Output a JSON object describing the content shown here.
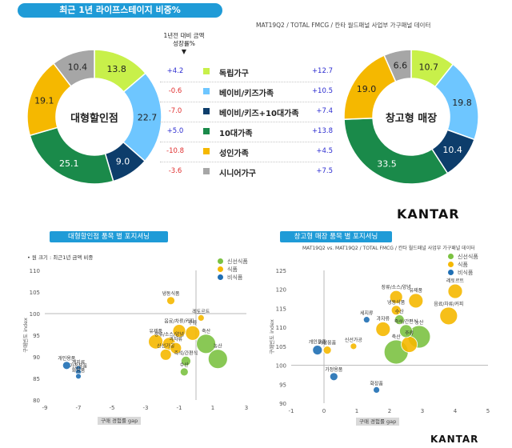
{
  "header": {
    "title": "최근 1년 라이프스테이지 비중%",
    "source": "MAT19Q2 / TOTAL FMCG / 칸타 월드패널 사업부 가구패널 데이터",
    "growth_header_line1": "1년전 대비 금액",
    "growth_header_line2": "성장률%",
    "growth_arrow": "▼"
  },
  "colors": {
    "single": "#c8f04a",
    "baby": "#6ec6ff",
    "baby10": "#0d3d6b",
    "teen": "#1a8a4a",
    "adult": "#f5b800",
    "senior": "#a6a6a6",
    "fresh": "#7cc242",
    "food": "#f5b800",
    "nonfood": "#1f6fb4"
  },
  "brand": {
    "logo": "KANTAR"
  },
  "chart_data": [
    {
      "type": "pie",
      "variant": "donut",
      "center_label": "대형할인점",
      "labels": [
        "독립가구",
        "베이비/키즈가족",
        "베이비/키즈+10대가족",
        "10대가족",
        "성인가족",
        "시니어가구"
      ],
      "values": [
        13.8,
        22.7,
        9.0,
        25.1,
        19.1,
        10.4
      ],
      "growth": [
        "+4.2",
        "-0.6",
        "-7.0",
        "+5.0",
        "-10.8",
        "-3.6"
      ],
      "value_labels": [
        "13.8",
        "22.7",
        "9.0",
        "25.1",
        "19.1",
        "10.4"
      ]
    },
    {
      "type": "pie",
      "variant": "donut",
      "center_label": "창고형 매장",
      "labels": [
        "독립가구",
        "베이비/키즈가족",
        "베이비/키즈+10대가족",
        "10대가족",
        "성인가족",
        "시니어가구"
      ],
      "values": [
        10.7,
        19.8,
        10.4,
        33.5,
        19.0,
        6.6
      ],
      "growth": [
        "+12.7",
        "+10.5",
        "+7.4",
        "+13.8",
        "+4.5",
        "+7.5"
      ],
      "value_labels": [
        "10.7",
        "19.8",
        "10.4",
        "33.5",
        "19.0",
        "6.6"
      ]
    },
    {
      "type": "scatter",
      "title": "대형할인점 품목 별 포지셔닝",
      "bubble_note": "• 원 크기 : 최근1년 금액 비중",
      "xlabel": "구매 경험률 gap",
      "ylabel": "구매빈도 index",
      "xlim": [
        -9,
        3
      ],
      "ylim": [
        80,
        110
      ],
      "xticks": [
        "-9",
        "-7",
        "-5",
        "-3",
        "-1",
        "1",
        "3"
      ],
      "yticks": [
        "80",
        "85",
        "90",
        "95",
        "100",
        "105",
        "110"
      ],
      "legend_position": "top-right",
      "legend": [
        "신선식품",
        "식품",
        "비식품"
      ],
      "points": [
        {
          "label": "냉동식품",
          "x": -1.5,
          "y": 103,
          "r": 5,
          "group": "food"
        },
        {
          "label": "레토르트",
          "x": 0.3,
          "y": 99,
          "r": 4,
          "group": "food"
        },
        {
          "label": "음료/차류/커피",
          "x": -1.0,
          "y": 96,
          "r": 8,
          "group": "food"
        },
        {
          "label": "주류",
          "x": -0.2,
          "y": 95.5,
          "r": 9,
          "group": "food"
        },
        {
          "label": "유제품",
          "x": -2.4,
          "y": 93.5,
          "r": 9,
          "group": "food"
        },
        {
          "label": "장류/소스/양념",
          "x": -1.6,
          "y": 93,
          "r": 8,
          "group": "food"
        },
        {
          "label": "과자류",
          "x": -1.2,
          "y": 92,
          "r": 7,
          "group": "food"
        },
        {
          "label": "신선가공",
          "x": -1.8,
          "y": 90.5,
          "r": 7,
          "group": "food"
        },
        {
          "label": "축산",
          "x": 0.6,
          "y": 93,
          "r": 12,
          "group": "fresh"
        },
        {
          "label": "농산",
          "x": 1.3,
          "y": 89.5,
          "r": 12,
          "group": "fresh"
        },
        {
          "label": "수산",
          "x": -0.7,
          "y": 86.5,
          "r": 5,
          "group": "fresh"
        },
        {
          "label": "즉석/간편식",
          "x": -0.6,
          "y": 89,
          "r": 6,
          "group": "fresh"
        },
        {
          "label": "개인용품",
          "x": -7.7,
          "y": 88,
          "r": 5,
          "group": "nonfood"
        },
        {
          "label": "계지류",
          "x": -7.0,
          "y": 87.3,
          "r": 3.5,
          "group": "nonfood"
        },
        {
          "label": "가정용품",
          "x": -7.0,
          "y": 86.5,
          "r": 3.5,
          "group": "nonfood"
        },
        {
          "label": "화장품",
          "x": -7.0,
          "y": 85.5,
          "r": 3.5,
          "group": "nonfood"
        }
      ]
    },
    {
      "type": "scatter",
      "title": "창고형 매장 품목 별 포지셔닝",
      "source": "MAT19Q2 vs. MAT19Q2 / TOTAL FMCG / 칸타 월드패널 사업부 가구패널 데이터",
      "xlabel": "구매 경험률 gap",
      "ylabel": "구매빈도 index",
      "xlim": [
        -1,
        5
      ],
      "ylim": [
        90,
        125
      ],
      "xticks": [
        "-1",
        "0",
        "1",
        "2",
        "3",
        "4",
        "5"
      ],
      "yticks": [
        "90",
        "95",
        "100",
        "105",
        "110",
        "115",
        "120",
        "125"
      ],
      "legend_position": "top-right",
      "legend": [
        "신선식품",
        "식품",
        "비식품"
      ],
      "points": [
        {
          "label": "레토르트",
          "x": 4.0,
          "y": 119.5,
          "r": 9,
          "group": "food"
        },
        {
          "label": "장류/소스/양념",
          "x": 2.2,
          "y": 118,
          "r": 8,
          "group": "food"
        },
        {
          "label": "유제품",
          "x": 2.8,
          "y": 117,
          "r": 9,
          "group": "food"
        },
        {
          "label": "음료/차류/커피",
          "x": 3.8,
          "y": 113,
          "r": 11,
          "group": "food"
        },
        {
          "label": "냉동식품",
          "x": 2.2,
          "y": 114.5,
          "r": 6,
          "group": "food"
        },
        {
          "label": "수산",
          "x": 2.3,
          "y": 112,
          "r": 6,
          "group": "fresh"
        },
        {
          "label": "세지류",
          "x": 1.3,
          "y": 112,
          "r": 4,
          "group": "nonfood"
        },
        {
          "label": "과자류",
          "x": 1.8,
          "y": 109.5,
          "r": 9,
          "group": "food"
        },
        {
          "label": "즉석/간편식",
          "x": 2.5,
          "y": 109,
          "r": 8,
          "group": "fresh"
        },
        {
          "label": "주류",
          "x": 2.6,
          "y": 105.5,
          "r": 10,
          "group": "food"
        },
        {
          "label": "농산",
          "x": 2.9,
          "y": 107.5,
          "r": 14,
          "group": "fresh"
        },
        {
          "label": "축산",
          "x": 2.2,
          "y": 103.5,
          "r": 15,
          "group": "fresh"
        },
        {
          "label": "신선가공",
          "x": 0.9,
          "y": 105,
          "r": 4,
          "group": "food"
        },
        {
          "label": "개인용품",
          "x": -0.2,
          "y": 104,
          "r": 6,
          "group": "nonfood"
        },
        {
          "label": "가정용품",
          "x": 0.1,
          "y": 104,
          "r": 5,
          "group": "food"
        },
        {
          "label": "가정용품",
          "x": 0.3,
          "y": 97,
          "r": 5,
          "group": "nonfood"
        },
        {
          "label": "화장품",
          "x": 1.6,
          "y": 93.5,
          "r": 4,
          "group": "nonfood"
        }
      ]
    }
  ]
}
